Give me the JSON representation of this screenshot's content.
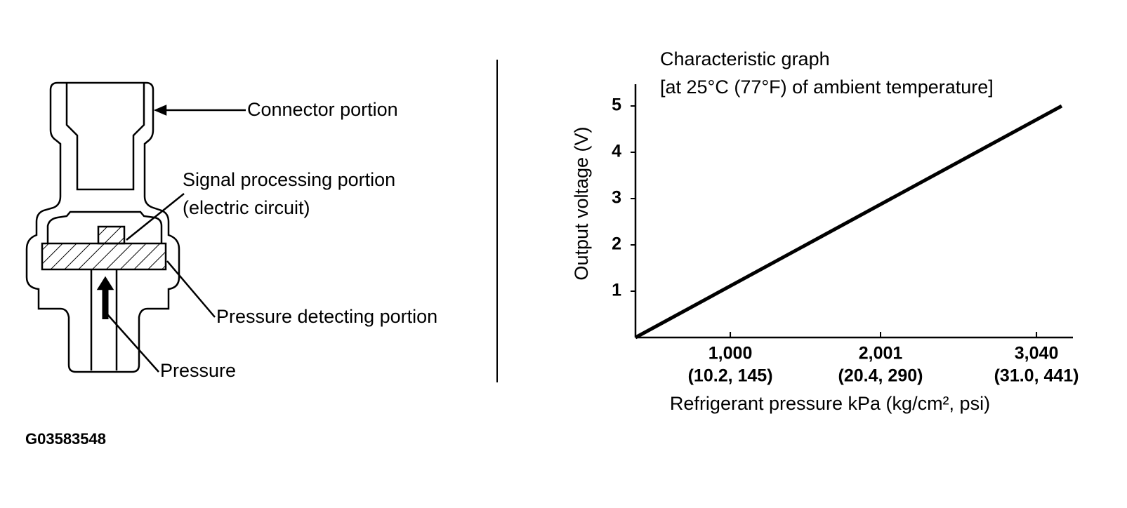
{
  "diagram": {
    "labels": {
      "connector": "Connector portion",
      "signal": "Signal processing portion",
      "signal_note": "(electric circuit)",
      "detecting": "Pressure detecting portion",
      "pressure": "Pressure"
    },
    "figure_id": "G03583548"
  },
  "chart_data": {
    "type": "line",
    "title": "Characteristic graph",
    "subtitle": "[at 25°C (77°F) of ambient temperature]",
    "x_label": "Refrigerant pressure kPa (kg/cm², psi)",
    "y_label": "Output voltage (V)",
    "x": [
      368,
      3208
    ],
    "series": [
      {
        "values": [
          0,
          5
        ],
        "color": "#000000"
      }
    ],
    "xlim": [
      368,
      3283
    ],
    "ylim": [
      0,
      5.47
    ],
    "xticks": [
      {
        "value": 1000,
        "label": "1,000",
        "sublabel": "(10.2, 145)"
      },
      {
        "value": 2001,
        "label": "2,001",
        "sublabel": "(20.4, 290)"
      },
      {
        "value": 3040,
        "label": "3,040",
        "sublabel": "(31.0, 441)"
      }
    ],
    "yticks": [
      1,
      2,
      3,
      4,
      5
    ]
  }
}
